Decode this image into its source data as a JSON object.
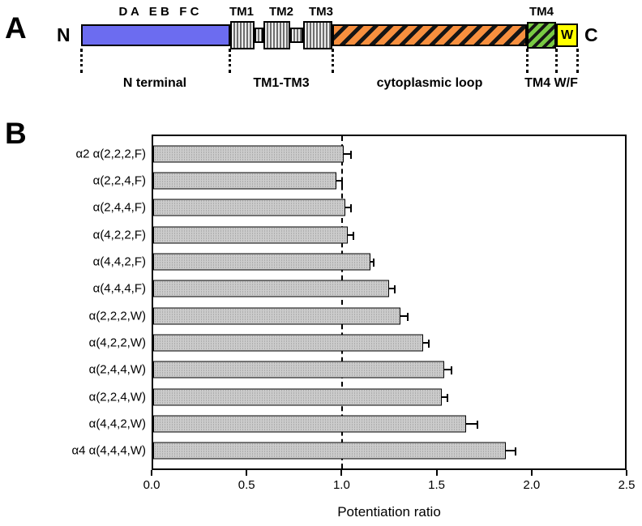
{
  "panel_a": {
    "label": "A",
    "n_terminus": "N",
    "c_terminus": "C",
    "loop_letters": "D A   E B   F C",
    "tm_top_labels": [
      "TM1",
      "TM2",
      "TM3"
    ],
    "tm4_top_label": "TM4",
    "w_box_letter": "W",
    "region_labels": {
      "n_terminal": "N terminal",
      "tm1_tm3": "TM1-TM3",
      "cytoplasmic_loop": "cytoplasmic loop",
      "tm4_wf": "TM4 W/F"
    },
    "colors": {
      "n_terminal_fill": "#6c6cf0",
      "tm_stripe_light": "#ececec",
      "tm_stripe_dark": "#6f6f6f",
      "cytoplasmic_loop_fill": "#f78f3e",
      "tm4_fill": "#79c943",
      "wf_fill": "#ffff00",
      "hatch_color": "#151515"
    }
  },
  "panel_b": {
    "label": "B"
  },
  "chart_data": {
    "type": "bar",
    "orientation": "horizontal",
    "title": "",
    "categories": [
      "α2 α(2,2,2,F)",
      "α(2,2,4,F)",
      "α(2,4,4,F)",
      "α(4,2,2,F)",
      "α(4,4,2,F)",
      "α(4,4,4,F)",
      "α(2,2,2,W)",
      "α(4,2,2,W)",
      "α(2,4,4,W)",
      "α(2,2,4,W)",
      "α(4,4,2,W)",
      "α4 α(4,4,4,W)"
    ],
    "values": [
      1.01,
      0.97,
      1.02,
      1.03,
      1.15,
      1.25,
      1.31,
      1.43,
      1.54,
      1.53,
      1.66,
      1.87
    ],
    "errors": [
      0.04,
      0.03,
      0.03,
      0.03,
      0.02,
      0.03,
      0.04,
      0.03,
      0.04,
      0.03,
      0.06,
      0.05
    ],
    "xlabel": "Potentiation ratio",
    "xlim": [
      0,
      2.5
    ],
    "xticks": [
      0.0,
      0.5,
      1.0,
      1.5,
      2.0,
      2.5
    ],
    "xtick_labels": [
      "0.0",
      "0.5",
      "1.0",
      "1.5",
      "2.0",
      "2.5"
    ],
    "reference_line_x": 1.0,
    "bar_fill": "#cbcbcb",
    "grid": false,
    "legend": null
  }
}
